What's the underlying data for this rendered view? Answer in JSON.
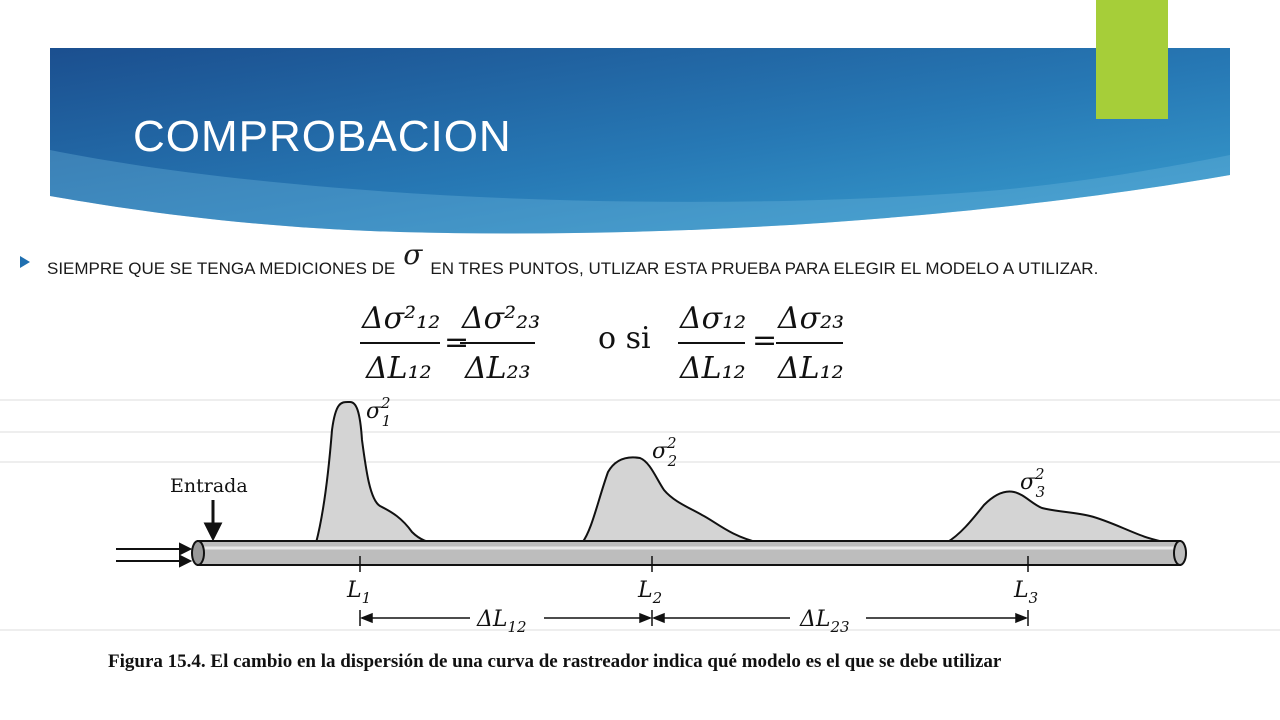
{
  "slide": {
    "title": "COMPROBACION",
    "bullet": {
      "before": "SIEMPRE QUE SE TENGA MEDICIONES DE",
      "symbol": "σ",
      "after": "EN TRES PUNTOS, UTLIZAR ESTA PRUEBA PARA ELEGIR EL MODELO A UTILIZAR."
    },
    "colors": {
      "banner": "#1d5f99",
      "accent": "#a6ce39",
      "bullet": "#1f6fb0"
    }
  },
  "figure": {
    "equation": {
      "lhs_num": "Δσ²₁₂",
      "lhs_den": "ΔL₁₂",
      "mid_num": "Δσ²₂₃",
      "mid_den": "ΔL₂₃",
      "connector": "o si",
      "rhs_num1": "Δσ₁₂",
      "rhs_den1": "ΔL₁₂",
      "rhs_num2": "Δσ₂₃",
      "rhs_den2": "ΔL₁₂"
    },
    "entrada_label": "Entrada",
    "peaks": [
      {
        "label": "σ",
        "sup": "2",
        "sub": "1"
      },
      {
        "label": "σ",
        "sup": "2",
        "sub": "2"
      },
      {
        "label": "σ",
        "sup": "2",
        "sub": "3"
      }
    ],
    "positions": [
      {
        "label": "L",
        "sub": "1"
      },
      {
        "label": "L",
        "sub": "2"
      },
      {
        "label": "L",
        "sub": "3"
      }
    ],
    "intervals": [
      {
        "label": "ΔL",
        "sub": "12"
      },
      {
        "label": "ΔL",
        "sub": "23"
      }
    ],
    "caption": {
      "prefix": "Figura 15.4.",
      "text": "El cambio en la dispersión de una curva de rastreador indica qué modelo es el que se debe utilizar"
    }
  }
}
